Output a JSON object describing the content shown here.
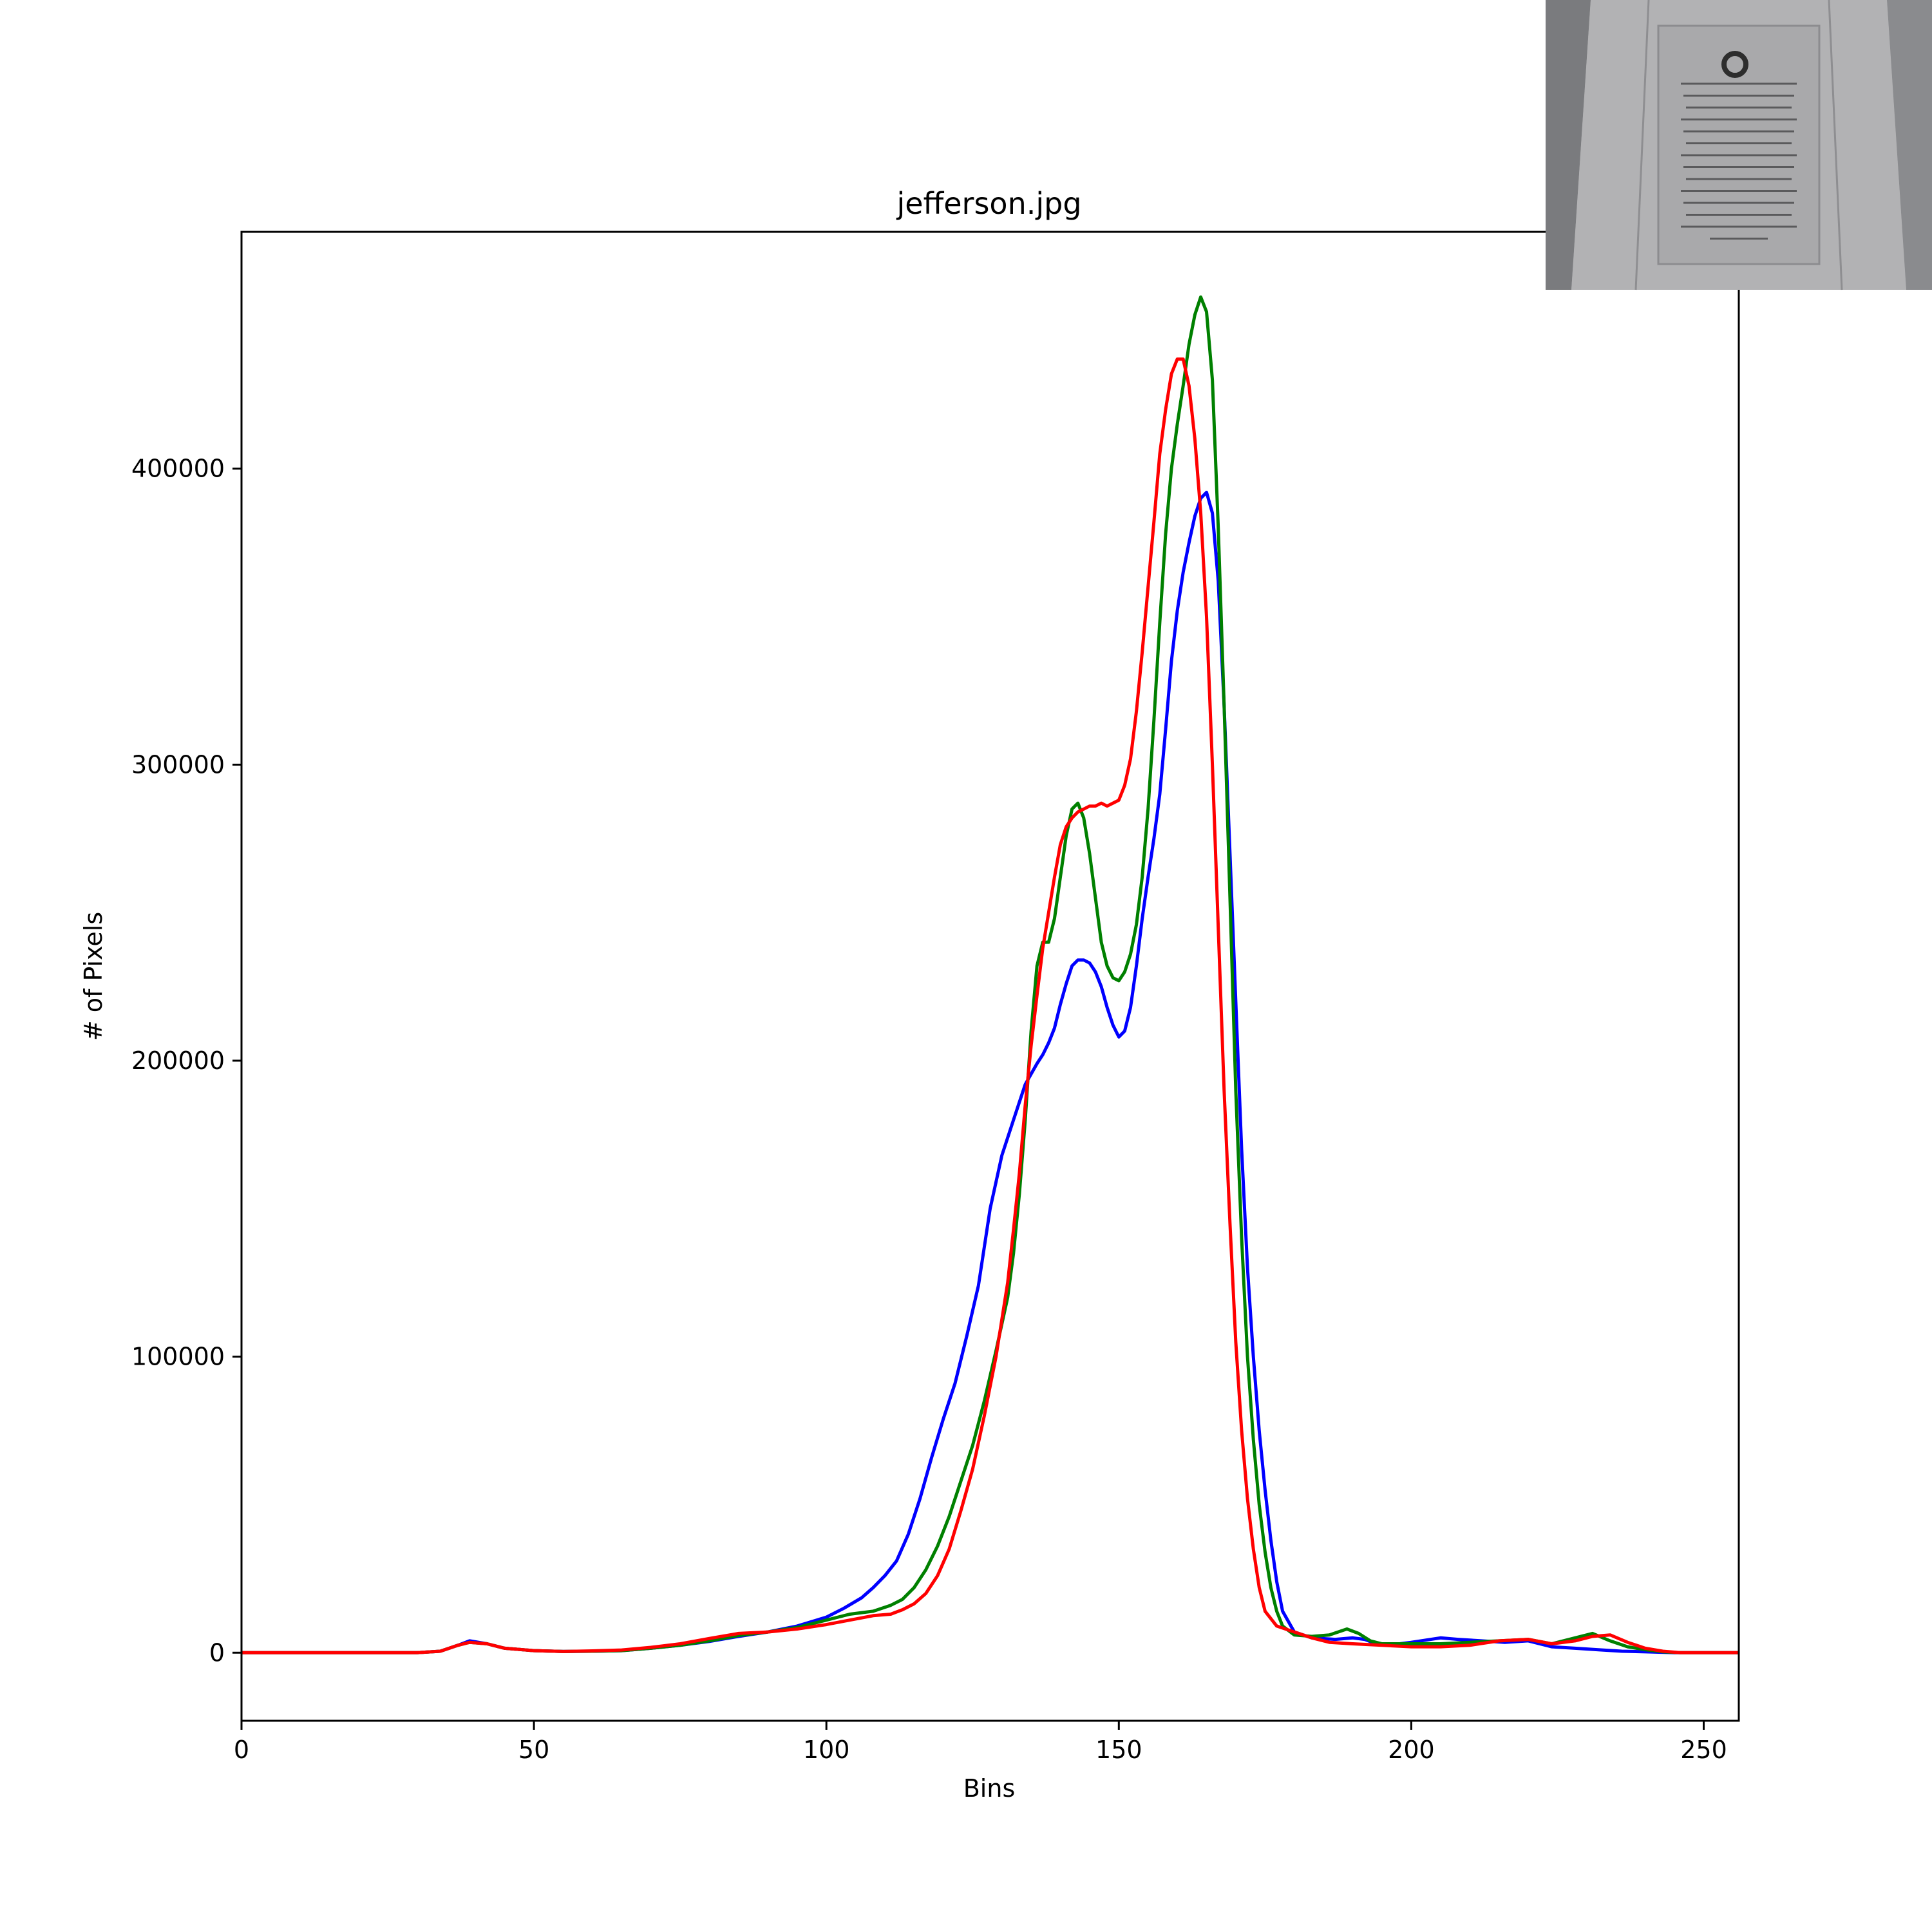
{
  "chart_data": {
    "type": "line",
    "title": "jefferson.jpg",
    "xlabel": "Bins",
    "ylabel": "# of Pixels",
    "xlim": [
      0,
      256
    ],
    "ylim": [
      -23000,
      480000
    ],
    "xticks": [
      0,
      50,
      100,
      150,
      200,
      250
    ],
    "yticks": [
      0,
      100000,
      200000,
      300000,
      400000
    ],
    "grid": false,
    "legend": "none",
    "series": [
      {
        "color": "#0000ff",
        "points": [
          [
            0,
            0
          ],
          [
            30,
            0
          ],
          [
            34,
            500
          ],
          [
            37,
            2500
          ],
          [
            39,
            4000
          ],
          [
            42,
            3000
          ],
          [
            45,
            1500
          ],
          [
            50,
            700
          ],
          [
            55,
            400
          ],
          [
            60,
            500
          ],
          [
            65,
            700
          ],
          [
            70,
            1500
          ],
          [
            75,
            2500
          ],
          [
            80,
            3800
          ],
          [
            85,
            5500
          ],
          [
            90,
            7000
          ],
          [
            95,
            9000
          ],
          [
            100,
            12000
          ],
          [
            103,
            15000
          ],
          [
            106,
            18500
          ],
          [
            108,
            22000
          ],
          [
            110,
            26000
          ],
          [
            112,
            31000
          ],
          [
            114,
            40000
          ],
          [
            116,
            52000
          ],
          [
            118,
            66000
          ],
          [
            120,
            79000
          ],
          [
            122,
            91000
          ],
          [
            124,
            107000
          ],
          [
            126,
            124000
          ],
          [
            128,
            150000
          ],
          [
            130,
            168000
          ],
          [
            132,
            180000
          ],
          [
            134,
            192000
          ],
          [
            136,
            199000
          ],
          [
            137,
            202000
          ],
          [
            138,
            206000
          ],
          [
            139,
            211000
          ],
          [
            140,
            219000
          ],
          [
            141,
            226000
          ],
          [
            142,
            232000
          ],
          [
            143,
            234000
          ],
          [
            144,
            234000
          ],
          [
            145,
            233000
          ],
          [
            146,
            230000
          ],
          [
            147,
            225000
          ],
          [
            148,
            218000
          ],
          [
            149,
            212000
          ],
          [
            150,
            208000
          ],
          [
            151,
            210000
          ],
          [
            152,
            218000
          ],
          [
            153,
            232000
          ],
          [
            154,
            248000
          ],
          [
            155,
            262000
          ],
          [
            156,
            275000
          ],
          [
            157,
            290000
          ],
          [
            158,
            312000
          ],
          [
            159,
            335000
          ],
          [
            160,
            352000
          ],
          [
            161,
            365000
          ],
          [
            162,
            375000
          ],
          [
            163,
            384000
          ],
          [
            164,
            390000
          ],
          [
            165,
            392000
          ],
          [
            166,
            385000
          ],
          [
            167,
            362000
          ],
          [
            168,
            320000
          ],
          [
            169,
            270000
          ],
          [
            170,
            220000
          ],
          [
            171,
            170000
          ],
          [
            172,
            130000
          ],
          [
            173,
            100000
          ],
          [
            174,
            75000
          ],
          [
            175,
            55000
          ],
          [
            176,
            38000
          ],
          [
            177,
            24000
          ],
          [
            178,
            14000
          ],
          [
            180,
            7000
          ],
          [
            183,
            5000
          ],
          [
            187,
            4500
          ],
          [
            190,
            5000
          ],
          [
            192,
            4500
          ],
          [
            194,
            3000
          ],
          [
            196,
            2500
          ],
          [
            200,
            3500
          ],
          [
            205,
            5000
          ],
          [
            208,
            4500
          ],
          [
            212,
            4000
          ],
          [
            216,
            3500
          ],
          [
            220,
            4000
          ],
          [
            224,
            2000
          ],
          [
            228,
            1500
          ],
          [
            232,
            1000
          ],
          [
            236,
            500
          ],
          [
            240,
            300
          ],
          [
            245,
            0
          ],
          [
            256,
            0
          ]
        ]
      },
      {
        "color": "#008000",
        "points": [
          [
            0,
            0
          ],
          [
            30,
            0
          ],
          [
            34,
            500
          ],
          [
            37,
            2500
          ],
          [
            39,
            3500
          ],
          [
            42,
            3000
          ],
          [
            45,
            1500
          ],
          [
            50,
            700
          ],
          [
            55,
            400
          ],
          [
            60,
            500
          ],
          [
            65,
            700
          ],
          [
            70,
            1500
          ],
          [
            75,
            2500
          ],
          [
            80,
            4000
          ],
          [
            85,
            5800
          ],
          [
            90,
            7000
          ],
          [
            95,
            8500
          ],
          [
            100,
            11000
          ],
          [
            104,
            13000
          ],
          [
            108,
            14000
          ],
          [
            111,
            16000
          ],
          [
            113,
            18000
          ],
          [
            115,
            22000
          ],
          [
            117,
            28000
          ],
          [
            119,
            36000
          ],
          [
            121,
            46000
          ],
          [
            123,
            58000
          ],
          [
            125,
            70000
          ],
          [
            127,
            85000
          ],
          [
            129,
            102000
          ],
          [
            131,
            120000
          ],
          [
            132,
            135000
          ],
          [
            133,
            155000
          ],
          [
            134,
            180000
          ],
          [
            135,
            210000
          ],
          [
            136,
            232000
          ],
          [
            137,
            240000
          ],
          [
            138,
            240000
          ],
          [
            139,
            248000
          ],
          [
            140,
            262000
          ],
          [
            141,
            276000
          ],
          [
            142,
            285000
          ],
          [
            143,
            287000
          ],
          [
            144,
            282000
          ],
          [
            145,
            270000
          ],
          [
            146,
            255000
          ],
          [
            147,
            240000
          ],
          [
            148,
            232000
          ],
          [
            149,
            228000
          ],
          [
            150,
            227000
          ],
          [
            151,
            230000
          ],
          [
            152,
            236000
          ],
          [
            153,
            246000
          ],
          [
            154,
            262000
          ],
          [
            155,
            285000
          ],
          [
            156,
            315000
          ],
          [
            157,
            348000
          ],
          [
            158,
            378000
          ],
          [
            159,
            400000
          ],
          [
            160,
            415000
          ],
          [
            161,
            428000
          ],
          [
            162,
            442000
          ],
          [
            163,
            452000
          ],
          [
            164,
            458000
          ],
          [
            165,
            453000
          ],
          [
            166,
            430000
          ],
          [
            167,
            380000
          ],
          [
            168,
            320000
          ],
          [
            169,
            255000
          ],
          [
            170,
            190000
          ],
          [
            171,
            140000
          ],
          [
            172,
            100000
          ],
          [
            173,
            72000
          ],
          [
            174,
            50000
          ],
          [
            175,
            34000
          ],
          [
            176,
            22000
          ],
          [
            177,
            14000
          ],
          [
            178,
            9000
          ],
          [
            180,
            6000
          ],
          [
            183,
            5500
          ],
          [
            186,
            6000
          ],
          [
            189,
            8000
          ],
          [
            191,
            6500
          ],
          [
            193,
            4000
          ],
          [
            195,
            3000
          ],
          [
            200,
            3000
          ],
          [
            205,
            3000
          ],
          [
            210,
            3500
          ],
          [
            215,
            4000
          ],
          [
            220,
            4500
          ],
          [
            224,
            3000
          ],
          [
            228,
            5000
          ],
          [
            231,
            6500
          ],
          [
            234,
            4000
          ],
          [
            237,
            2000
          ],
          [
            240,
            1000
          ],
          [
            243,
            300
          ],
          [
            246,
            0
          ],
          [
            256,
            0
          ]
        ]
      },
      {
        "color": "#ff0000",
        "points": [
          [
            0,
            0
          ],
          [
            30,
            0
          ],
          [
            34,
            500
          ],
          [
            37,
            2500
          ],
          [
            39,
            3500
          ],
          [
            42,
            3000
          ],
          [
            45,
            1500
          ],
          [
            50,
            700
          ],
          [
            55,
            400
          ],
          [
            60,
            600
          ],
          [
            65,
            900
          ],
          [
            70,
            1800
          ],
          [
            75,
            3000
          ],
          [
            80,
            4800
          ],
          [
            85,
            6500
          ],
          [
            90,
            7000
          ],
          [
            95,
            8000
          ],
          [
            100,
            9500
          ],
          [
            104,
            11000
          ],
          [
            108,
            12500
          ],
          [
            111,
            13000
          ],
          [
            113,
            14500
          ],
          [
            115,
            16500
          ],
          [
            117,
            20000
          ],
          [
            119,
            26000
          ],
          [
            121,
            35000
          ],
          [
            123,
            48000
          ],
          [
            125,
            62000
          ],
          [
            127,
            80000
          ],
          [
            129,
            100000
          ],
          [
            131,
            125000
          ],
          [
            132,
            143000
          ],
          [
            133,
            162000
          ],
          [
            134,
            185000
          ],
          [
            135,
            205000
          ],
          [
            136,
            222000
          ],
          [
            137,
            238000
          ],
          [
            138,
            250000
          ],
          [
            139,
            262000
          ],
          [
            140,
            273000
          ],
          [
            141,
            279000
          ],
          [
            142,
            282000
          ],
          [
            143,
            284000
          ],
          [
            144,
            285000
          ],
          [
            145,
            286000
          ],
          [
            146,
            286000
          ],
          [
            147,
            287000
          ],
          [
            148,
            286000
          ],
          [
            149,
            287000
          ],
          [
            150,
            288000
          ],
          [
            151,
            293000
          ],
          [
            152,
            302000
          ],
          [
            153,
            318000
          ],
          [
            154,
            338000
          ],
          [
            155,
            360000
          ],
          [
            156,
            382000
          ],
          [
            157,
            405000
          ],
          [
            158,
            420000
          ],
          [
            159,
            432000
          ],
          [
            160,
            437000
          ],
          [
            161,
            437000
          ],
          [
            162,
            428000
          ],
          [
            163,
            410000
          ],
          [
            164,
            385000
          ],
          [
            165,
            350000
          ],
          [
            166,
            300000
          ],
          [
            167,
            245000
          ],
          [
            168,
            190000
          ],
          [
            169,
            145000
          ],
          [
            170,
            105000
          ],
          [
            171,
            75000
          ],
          [
            172,
            52000
          ],
          [
            173,
            35000
          ],
          [
            174,
            22000
          ],
          [
            175,
            14000
          ],
          [
            177,
            9000
          ],
          [
            180,
            7000
          ],
          [
            183,
            5000
          ],
          [
            186,
            3500
          ],
          [
            190,
            3000
          ],
          [
            195,
            2500
          ],
          [
            200,
            2000
          ],
          [
            205,
            2000
          ],
          [
            210,
            2500
          ],
          [
            215,
            4000
          ],
          [
            220,
            4500
          ],
          [
            224,
            3000
          ],
          [
            228,
            4000
          ],
          [
            231,
            5500
          ],
          [
            234,
            6000
          ],
          [
            237,
            3500
          ],
          [
            240,
            1500
          ],
          [
            243,
            500
          ],
          [
            246,
            0
          ],
          [
            256,
            0
          ]
        ]
      }
    ]
  }
}
